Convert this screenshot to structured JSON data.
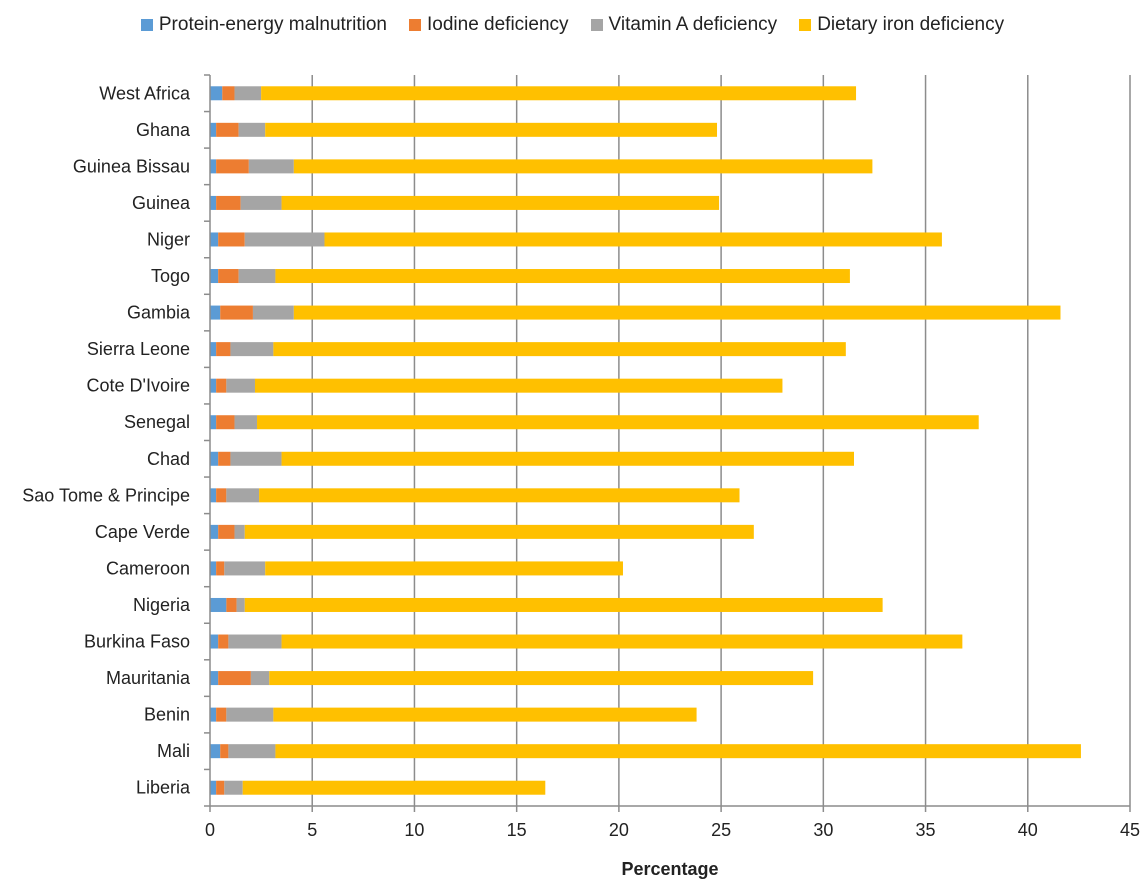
{
  "colors": {
    "protein": "#5B9BD5",
    "iodine": "#ED7D31",
    "vitamin_a": "#A5A5A5",
    "iron": "#FFC000",
    "grid": "#8C8C8C",
    "background": "#FFFFFF"
  },
  "chart_data": {
    "type": "bar",
    "orientation": "horizontal",
    "stacked": true,
    "title": "",
    "xlabel": "Percentage",
    "ylabel": "",
    "xlim": [
      0,
      45
    ],
    "x_ticks": [
      0,
      5,
      10,
      15,
      20,
      25,
      30,
      35,
      40,
      45
    ],
    "grid": true,
    "legend_position": "top",
    "categories": [
      "West Africa",
      "Ghana",
      "Guinea Bissau",
      "Guinea",
      "Niger",
      "Togo",
      "Gambia",
      "Sierra Leone",
      "Cote D'Ivoire",
      "Senegal",
      "Chad",
      "Sao Tome & Principe",
      "Cape Verde",
      "Cameroon",
      "Nigeria",
      "Burkina Faso",
      "Mauritania",
      "Benin",
      "Mali",
      "Liberia"
    ],
    "series": [
      {
        "name": "Protein-energy malnutrition",
        "color_key": "protein",
        "values": [
          0.6,
          0.3,
          0.3,
          0.3,
          0.4,
          0.4,
          0.5,
          0.3,
          0.3,
          0.3,
          0.4,
          0.3,
          0.4,
          0.3,
          0.8,
          0.4,
          0.4,
          0.3,
          0.5,
          0.3
        ]
      },
      {
        "name": "Iodine deficiency",
        "color_key": "iodine",
        "values": [
          0.6,
          1.1,
          1.6,
          1.2,
          1.3,
          1.0,
          1.6,
          0.7,
          0.5,
          0.9,
          0.6,
          0.5,
          0.8,
          0.4,
          0.5,
          0.5,
          1.6,
          0.5,
          0.4,
          0.4
        ]
      },
      {
        "name": "Vitamin A deficiency",
        "color_key": "vitamin_a",
        "values": [
          1.3,
          1.3,
          2.2,
          2.0,
          3.9,
          1.8,
          2.0,
          2.1,
          1.4,
          1.1,
          2.5,
          1.6,
          0.5,
          2.0,
          0.4,
          2.6,
          0.9,
          2.3,
          2.3,
          0.9
        ]
      },
      {
        "name": "Dietary iron deficiency",
        "color_key": "iron",
        "values": [
          29.1,
          22.1,
          28.3,
          21.4,
          30.2,
          28.1,
          37.5,
          28.0,
          25.8,
          35.3,
          28.0,
          23.5,
          24.9,
          17.5,
          31.2,
          33.3,
          26.6,
          20.7,
          39.4,
          14.8
        ]
      }
    ]
  }
}
